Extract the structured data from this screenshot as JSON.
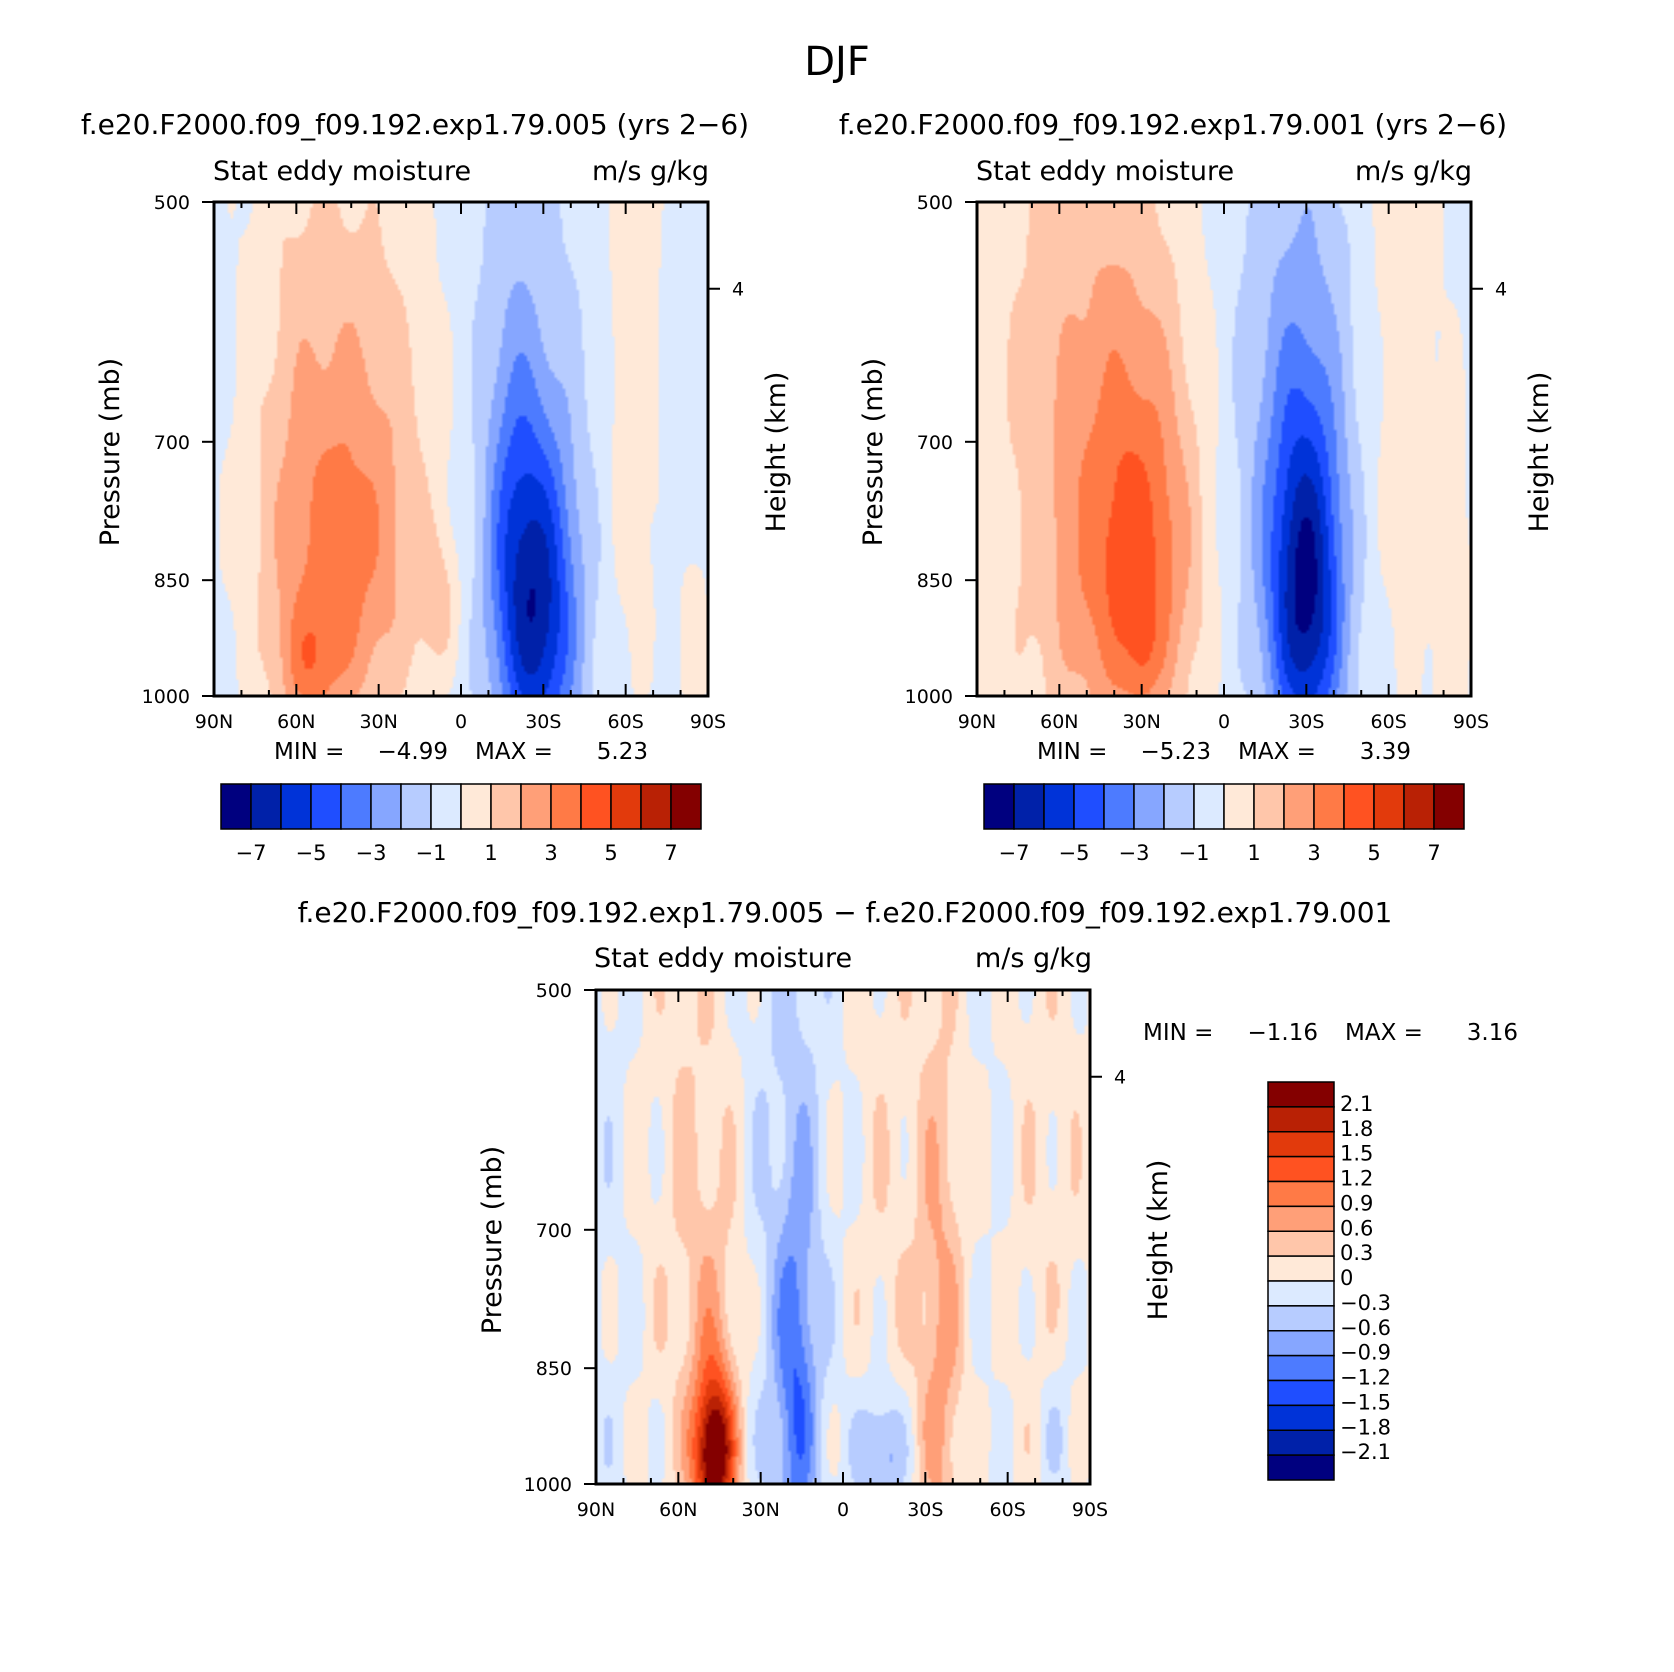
{
  "figure": {
    "suptitle": "DJF"
  },
  "colormaps": {
    "full": [
      "#00007f",
      "#0021a9",
      "#0033d8",
      "#1f4eff",
      "#4d7bff",
      "#86a6ff",
      "#b7ccff",
      "#dceaff",
      "#ffe9d8",
      "#ffc6aa",
      "#ff9f78",
      "#ff7a46",
      "#ff5221",
      "#e23a0c",
      "#b92105",
      "#840000"
    ],
    "diff": [
      "#00007f",
      "#0021a9",
      "#0033d8",
      "#1f4eff",
      "#4d7bff",
      "#86a6ff",
      "#b7ccff",
      "#dceaff",
      "#ffe9d8",
      "#ffc6aa",
      "#ff9f78",
      "#ff7a46",
      "#ff5221",
      "#e23a0c",
      "#b92105",
      "#840000"
    ]
  },
  "chart_data": [
    {
      "type": "heatmap",
      "title": "f.e20.F2000.f09_f09.192.exp1.79.005 (yrs 2−6)",
      "left_string": "Stat eddy moisture",
      "right_string": "m/s g/kg",
      "ylabel": "Pressure (mb)",
      "ylabel_right": "Height (km)",
      "x_ticklabels": [
        "90N",
        "60N",
        "30N",
        "0",
        "30S",
        "60S",
        "90S"
      ],
      "y_ticks": [
        500,
        700,
        850,
        1000
      ],
      "y_ticklabels": [
        "500",
        "700",
        "850",
        "1000"
      ],
      "right_ticks": [
        4
      ],
      "right_ticklabels": [
        "4"
      ],
      "ylim": [
        500,
        1000
      ],
      "xlim": [
        90,
        -90
      ],
      "min_label": "MIN =",
      "min_value": "−4.99",
      "max_label": "MAX =",
      "max_value": "5.23",
      "min": -4.99,
      "max": 5.23,
      "levels": [
        -7,
        -6,
        -5,
        -4,
        -3,
        -2,
        -1,
        0,
        1,
        2,
        3,
        4,
        5,
        6,
        7
      ],
      "colorbar_labels": [
        "−7",
        "−5",
        "−3",
        "−1",
        "1",
        "3",
        "5",
        "7"
      ],
      "colorbar_label_values": [
        -7,
        -5,
        -3,
        -1,
        1,
        3,
        5,
        7
      ],
      "features": [
        {
          "lat": 43,
          "p": 830,
          "sx": 20,
          "sy": 180,
          "a": 3.2
        },
        {
          "lat": 55,
          "p": 960,
          "sx": 8,
          "sy": 60,
          "a": 1.8
        },
        {
          "lat": 8,
          "p": 880,
          "sx": 5,
          "sy": 60,
          "a": 1.5
        },
        {
          "lat": 30,
          "p": 640,
          "sx": 28,
          "sy": 230,
          "a": 1.0
        },
        {
          "lat": 63,
          "p": 600,
          "sx": 12,
          "sy": 400,
          "a": 0.6
        },
        {
          "lat": -28,
          "p": 890,
          "sx": 10,
          "sy": 150,
          "a": -5.6
        },
        {
          "lat": -18,
          "p": 760,
          "sx": 7,
          "sy": 140,
          "a": -1.6
        },
        {
          "lat": -15,
          "p": 650,
          "sx": 20,
          "sy": 350,
          "a": -0.8
        },
        {
          "lat": -63,
          "p": 600,
          "sx": 7,
          "sy": 300,
          "a": 1.3
        },
        {
          "lat": -85,
          "p": 930,
          "sx": 4,
          "sy": 90,
          "a": 1.2
        }
      ],
      "base": -0.5
    },
    {
      "type": "heatmap",
      "title": "f.e20.F2000.f09_f09.192.exp1.79.001 (yrs 2−6)",
      "left_string": "Stat eddy moisture",
      "right_string": "m/s g/kg",
      "ylabel": "Pressure (mb)",
      "ylabel_right": "Height (km)",
      "x_ticklabels": [
        "90N",
        "60N",
        "30N",
        "0",
        "30S",
        "60S",
        "90S"
      ],
      "y_ticks": [
        500,
        700,
        850,
        1000
      ],
      "y_ticklabels": [
        "500",
        "700",
        "850",
        "1000"
      ],
      "right_ticks": [
        4
      ],
      "right_ticklabels": [
        "4"
      ],
      "ylim": [
        500,
        1000
      ],
      "xlim": [
        90,
        -90
      ],
      "min_label": "MIN =",
      "min_value": "−5.23",
      "max_label": "MAX =",
      "max_value": "3.39",
      "min": -5.23,
      "max": 3.39,
      "levels": [
        -7,
        -6,
        -5,
        -4,
        -3,
        -2,
        -1,
        0,
        1,
        2,
        3,
        4,
        5,
        6,
        7
      ],
      "colorbar_labels": [
        "−7",
        "−5",
        "−3",
        "−1",
        "1",
        "3",
        "5",
        "7"
      ],
      "colorbar_label_values": [
        -7,
        -5,
        -3,
        -1,
        1,
        3,
        5,
        7
      ],
      "features": [
        {
          "lat": 30,
          "p": 830,
          "sx": 15,
          "sy": 160,
          "a": 3.0
        },
        {
          "lat": 30,
          "p": 940,
          "sx": 4,
          "sy": 50,
          "a": 1.0
        },
        {
          "lat": 45,
          "p": 780,
          "sx": 22,
          "sy": 230,
          "a": 1.6
        },
        {
          "lat": 55,
          "p": 600,
          "sx": 35,
          "sy": 450,
          "a": 1.2
        },
        {
          "lat": -30,
          "p": 880,
          "sx": 9,
          "sy": 150,
          "a": -5.5
        },
        {
          "lat": -25,
          "p": 740,
          "sx": 14,
          "sy": 180,
          "a": -1.6
        },
        {
          "lat": -23,
          "p": 650,
          "sx": 22,
          "sy": 350,
          "a": -0.6
        },
        {
          "lat": -65,
          "p": 550,
          "sx": 10,
          "sy": 350,
          "a": 1.3
        },
        {
          "lat": -83,
          "p": 870,
          "sx": 5,
          "sy": 150,
          "a": 1.2
        }
      ],
      "base": -0.5
    },
    {
      "type": "heatmap",
      "title": "f.e20.F2000.f09_f09.192.exp1.79.005 − f.e20.F2000.f09_f09.192.exp1.79.001",
      "left_string": "Stat eddy moisture",
      "right_string": "m/s g/kg",
      "ylabel": "Pressure (mb)",
      "ylabel_right": "Height (km)",
      "x_ticklabels": [
        "90N",
        "60N",
        "30N",
        "0",
        "30S",
        "60S",
        "90S"
      ],
      "y_ticks": [
        500,
        700,
        850,
        1000
      ],
      "y_ticklabels": [
        "500",
        "700",
        "850",
        "1000"
      ],
      "right_ticks": [
        4
      ],
      "right_ticklabels": [
        "4"
      ],
      "ylim": [
        500,
        1000
      ],
      "xlim": [
        90,
        -90
      ],
      "min_label": "MIN =",
      "min_value": "−1.16",
      "max_label": "MAX =",
      "max_value": "3.16",
      "min": -1.16,
      "max": 3.16,
      "levels": [
        -2.1,
        -1.8,
        -1.5,
        -1.2,
        -0.9,
        -0.6,
        -0.3,
        0,
        0.3,
        0.6,
        0.9,
        1.2,
        1.5,
        1.8,
        2.1
      ],
      "colorbar_labels": [
        "2.1",
        "1.8",
        "1.5",
        "1.2",
        "0.9",
        "0.6",
        "0.3",
        "0",
        "−0.3",
        "−0.6",
        "−0.9",
        "−1.2",
        "−1.5",
        "−1.8",
        "−2.1"
      ],
      "colorbar_label_values": [
        2.1,
        1.8,
        1.5,
        1.2,
        0.9,
        0.6,
        0.3,
        0,
        -0.3,
        -0.6,
        -0.9,
        -1.2,
        -1.5,
        -1.8,
        -2.1
      ],
      "features": [
        {
          "lat": 47,
          "p": 960,
          "sx": 5,
          "sy": 70,
          "a": 2.3
        },
        {
          "lat": 47,
          "p": 880,
          "sx": 7,
          "sy": 170,
          "a": 0.5
        },
        {
          "lat": 57,
          "p": 650,
          "sx": 14,
          "sy": 450,
          "a": 0.4
        },
        {
          "lat": 17,
          "p": 890,
          "sx": 5,
          "sy": 150,
          "a": -0.8
        },
        {
          "lat": 18,
          "p": 760,
          "sx": 9,
          "sy": 250,
          "a": -0.35
        },
        {
          "lat": -14,
          "p": 960,
          "sx": 6,
          "sy": 60,
          "a": -0.9
        },
        {
          "lat": -36,
          "p": 860,
          "sx": 6,
          "sy": 250,
          "a": 0.7
        },
        {
          "lat": -18,
          "p": 700,
          "sx": 16,
          "sy": 350,
          "a": 0.35
        },
        {
          "lat": -75,
          "p": 700,
          "sx": 14,
          "sy": 400,
          "a": 0.35
        },
        {
          "lat": -78,
          "p": 930,
          "sx": 5,
          "sy": 80,
          "a": -0.35
        }
      ],
      "base": -0.15
    }
  ]
}
